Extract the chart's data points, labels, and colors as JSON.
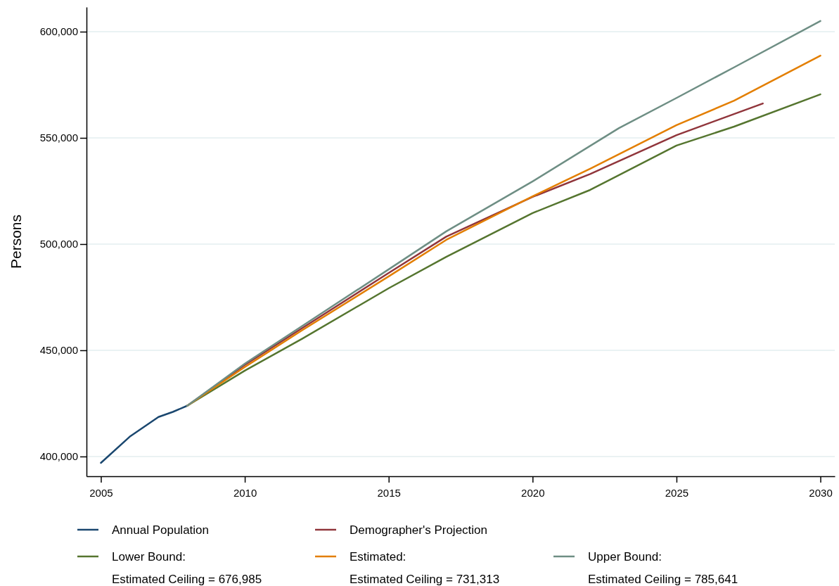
{
  "chart_data": {
    "type": "line",
    "ylabel": "Persons",
    "xlim": [
      2004.5,
      2030.5
    ],
    "xticks": [
      2005,
      2010,
      2015,
      2020,
      2025,
      2030
    ],
    "ylim": [
      390700,
      611600
    ],
    "yticks": [
      {
        "value": 400000,
        "label": "400,000"
      },
      {
        "value": 450000,
        "label": "450,000"
      },
      {
        "value": 500000,
        "label": "500,000"
      },
      {
        "value": 550000,
        "label": "550,000"
      },
      {
        "value": 600000,
        "label": "600,000"
      }
    ],
    "grid": "y",
    "legend": "bottom",
    "line_style": "solid",
    "marker": "none",
    "series": [
      {
        "name": "Annual Population",
        "color": "#1a476f",
        "x": [
          2005,
          2006,
          2007,
          2007.5,
          2008
        ],
        "values": [
          397000,
          409300,
          418600,
          421000,
          423900
        ]
      },
      {
        "name": "Demographer's Projection",
        "color": "#90353b",
        "x": [
          2008,
          2010,
          2012,
          2015,
          2017,
          2020,
          2022,
          2025,
          2028
        ],
        "values": [
          423900,
          443100,
          460500,
          486400,
          503500,
          522200,
          533000,
          551300,
          566200
        ]
      },
      {
        "name": "Lower Bound:\nEstimated Ceiling = 676,985",
        "color": "#55752f",
        "x": [
          2008,
          2010,
          2012,
          2015,
          2017,
          2020,
          2022,
          2025,
          2027,
          2030
        ],
        "values": [
          423900,
          440400,
          455500,
          479200,
          494000,
          514600,
          525500,
          546400,
          555300,
          570500
        ]
      },
      {
        "name": "Estimated:\nEstimated Ceiling = 731,313",
        "color": "#e37e00",
        "x": [
          2008,
          2010,
          2012,
          2015,
          2017,
          2020,
          2022,
          2025,
          2027,
          2030
        ],
        "values": [
          423900,
          442100,
          459500,
          484800,
          502000,
          522500,
          535500,
          556000,
          567500,
          588700
        ]
      },
      {
        "name": "Upper Bound:\nEstimated Ceiling = 785,641",
        "color": "#6e8e84",
        "x": [
          2008,
          2010,
          2012,
          2015,
          2017,
          2020,
          2023,
          2025,
          2027,
          2030
        ],
        "values": [
          423900,
          443700,
          461500,
          488100,
          506000,
          529500,
          554600,
          568800,
          583200,
          605000
        ]
      }
    ]
  }
}
